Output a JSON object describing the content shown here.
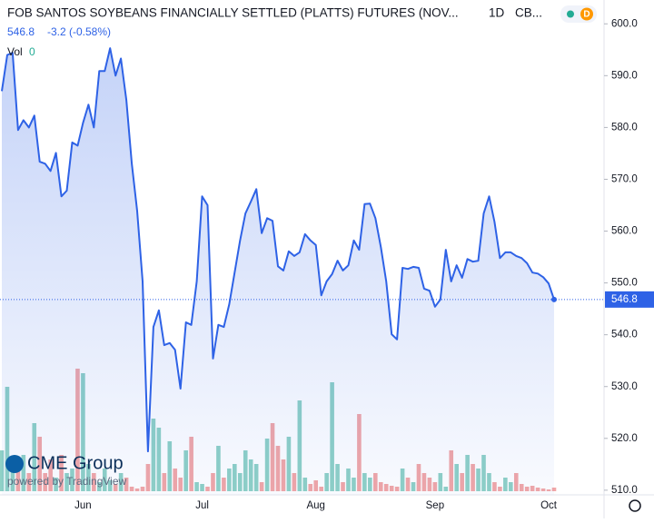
{
  "header": {
    "title": "FOB SANTOS SOYBEANS FINANCIALLY SETTLED (PLATTS) FUTURES (NOV...",
    "interval": "1D",
    "exchange": "CB...",
    "change": "-3.2 (-0.58%)",
    "vol_label": "Vol",
    "vol_value": "0",
    "badge": "D",
    "logo": "CME Group",
    "powered": "powered by TradingView"
  },
  "chart_data": {
    "type": "line",
    "area": true,
    "last_value": 546.8,
    "categories": [
      null,
      null,
      null,
      null,
      null,
      null,
      null,
      null,
      null,
      null,
      null,
      null,
      null,
      null,
      null,
      "Jun",
      null,
      null,
      null,
      null,
      null,
      null,
      null,
      null,
      null,
      null,
      null,
      null,
      null,
      null,
      null,
      null,
      null,
      null,
      null,
      null,
      null,
      "Jul",
      null,
      null,
      null,
      null,
      null,
      null,
      null,
      null,
      null,
      null,
      null,
      null,
      null,
      null,
      null,
      null,
      null,
      null,
      null,
      null,
      "Aug",
      null,
      null,
      null,
      null,
      null,
      null,
      null,
      null,
      null,
      null,
      null,
      null,
      null,
      null,
      null,
      null,
      null,
      null,
      null,
      null,
      null,
      "Sep",
      null,
      null,
      null,
      null,
      null,
      null,
      null,
      null,
      null,
      null,
      null,
      null,
      null,
      null,
      null,
      null,
      null,
      null,
      null,
      null,
      "Oct",
      null
    ],
    "series": [
      {
        "color": "#2e62e6",
        "values": [
          587.0,
          594.0,
          594.4,
          579.5,
          581.4,
          580.0,
          582.3,
          573.4,
          573.0,
          571.6,
          575.1,
          566.7,
          567.8,
          577.1,
          576.5,
          580.9,
          584.4,
          580.0,
          590.9,
          590.9,
          595.3,
          590.0,
          593.3,
          585.3,
          573.0,
          563.9,
          550.3,
          517.5,
          541.5,
          544.7,
          538.0,
          538.4,
          537.1,
          529.6,
          542.4,
          541.9,
          550.3,
          566.7,
          565.0,
          535.4,
          541.9,
          541.5,
          545.9,
          552.0,
          558.2,
          563.4,
          565.7,
          568.1,
          559.6,
          562.5,
          562.0,
          553.2,
          552.4,
          556.1,
          555.2,
          555.9,
          559.4,
          558.2,
          557.3,
          547.6,
          550.3,
          551.7,
          554.3,
          552.4,
          553.4,
          558.2,
          556.4,
          565.2,
          565.3,
          562.5,
          556.9,
          550.3,
          540.1,
          539.1,
          552.9,
          552.7,
          553.1,
          552.9,
          548.9,
          548.5,
          545.4,
          546.8,
          556.4,
          550.3,
          553.4,
          551.0,
          554.6,
          554.1,
          554.3,
          563.4,
          566.7,
          561.8,
          554.8,
          555.9,
          555.9,
          555.2,
          554.8,
          553.8,
          552.0,
          551.8,
          551.1,
          549.9,
          546.8
        ]
      }
    ],
    "volume": {
      "up_color": "#8fd1c6",
      "down_color": "#f2a7a7",
      "values": [
        45,
        115,
        30,
        25,
        40,
        20,
        75,
        60,
        20,
        35,
        15,
        40,
        20,
        25,
        135,
        130,
        30,
        20,
        10,
        25,
        12,
        8,
        20,
        15,
        5,
        3,
        5,
        30,
        80,
        70,
        20,
        55,
        25,
        15,
        45,
        60,
        10,
        8,
        5,
        20,
        50,
        15,
        25,
        30,
        20,
        45,
        35,
        30,
        10,
        58,
        75,
        50,
        35,
        60,
        20,
        100,
        15,
        8,
        12,
        5,
        20,
        120,
        30,
        10,
        25,
        15,
        85,
        20,
        15,
        20,
        10,
        8,
        6,
        5,
        25,
        15,
        10,
        30,
        20,
        15,
        10,
        20,
        5,
        45,
        30,
        20,
        40,
        30,
        25,
        40,
        20,
        10,
        5,
        15,
        10,
        20,
        8,
        5,
        6,
        4,
        3,
        2,
        4
      ]
    },
    "ylim": [
      509.1,
      604.6
    ],
    "yticks": [
      {
        "value": 510,
        "label": "510.0"
      },
      {
        "value": 520,
        "label": "520.0"
      },
      {
        "value": 530,
        "label": "530.0"
      },
      {
        "value": 540,
        "label": "540.0"
      },
      {
        "value": 550,
        "label": "550.0"
      },
      {
        "value": 560,
        "label": "560.0"
      },
      {
        "value": 570,
        "label": "570.0"
      },
      {
        "value": 580,
        "label": "580.0"
      },
      {
        "value": 590,
        "label": "590.0"
      },
      {
        "value": 600,
        "label": "600.0"
      }
    ]
  }
}
